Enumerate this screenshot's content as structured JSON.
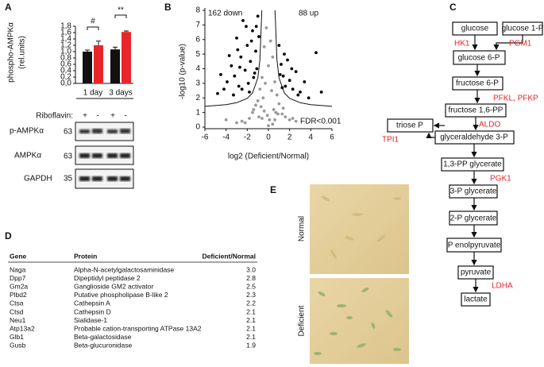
{
  "panel_labels": [
    "A",
    "B",
    "C",
    "D",
    "E"
  ],
  "chart_data": [
    {
      "type": "bar",
      "ylabel": [
        "phospho-AMPKα",
        "(rel.units)"
      ],
      "groups": [
        "1 day",
        "3 days"
      ],
      "values": [
        1.0,
        1.2,
        1.07,
        1.62
      ],
      "errors": [
        0.05,
        0.13,
        0.07,
        0.03
      ],
      "colors": [
        "#111111",
        "#e8262a",
        "#111111",
        "#e8262a"
      ],
      "ylim": [
        0,
        1.8
      ],
      "yticks": [
        {
          "value": 0,
          "label": "0,0"
        },
        {
          "value": 0.2,
          "label": "0,2"
        },
        {
          "value": 0.4,
          "label": "0,4"
        },
        {
          "value": 0.6,
          "label": "0,6"
        },
        {
          "value": 0.8,
          "label": "0,8"
        },
        {
          "value": 1.0,
          "label": "1,0"
        },
        {
          "value": 1.2,
          "label": "1,2"
        },
        {
          "value": 1.4,
          "label": "1,4"
        },
        {
          "value": 1.6,
          "label": "1,6"
        },
        {
          "value": 1.8,
          "label": "1,8"
        }
      ],
      "annotations": [
        "#",
        "**"
      ],
      "treatment_label": "Riboflavin:",
      "treatment": [
        "+",
        "-",
        "+",
        "-"
      ]
    },
    {
      "type": "scatter",
      "xlabel": "log2 (Deficient/Normal)",
      "ylabel": "-log10 (p-value)",
      "annotations": [
        "162 down",
        "88 up",
        "FDR<0.001"
      ],
      "xlim": [
        -6,
        6
      ],
      "xticks": [
        -6,
        -4,
        -2,
        0,
        2,
        4,
        6
      ],
      "ylim": [
        0,
        8
      ],
      "yticks": [
        0,
        1,
        2,
        3,
        4,
        5,
        6,
        7,
        8
      ],
      "series": [
        {
          "color": "#999999",
          "x": [
            -1.8,
            -1.5,
            -1.2,
            -1.0,
            -0.8,
            -0.6,
            -0.4,
            -0.2,
            0,
            0.2,
            0.4,
            0.6,
            0.8,
            1.0,
            1.3,
            1.6,
            2.0,
            -2.5,
            -3.0,
            2.6,
            -0.5,
            -0.3,
            0.3,
            0.5,
            -0.7,
            0.7,
            -0.1,
            0.1,
            -0.9,
            0.9,
            -1.4,
            1.4,
            -2.2,
            2.3,
            -0.4,
            0.4,
            0,
            -0.6,
            0.6,
            -4.0
          ],
          "values": [
            0.6,
            1.0,
            1.5,
            1.8,
            2.6,
            3.4,
            5.5,
            6.8,
            4.2,
            5.9,
            4.8,
            3.1,
            2.2,
            1.6,
            0.9,
            0.7,
            0.5,
            0.4,
            0.3,
            0.4,
            2.0,
            3.0,
            2.5,
            1.2,
            1.4,
            1.0,
            0.8,
            0.5,
            0.7,
            0.9,
            1.2,
            1.3,
            0.3,
            0.6,
            1.1,
            0.2,
            0.1,
            0.6,
            0.5,
            0.5
          ]
        },
        {
          "color": "#000000",
          "x": [
            -4.8,
            -4.2,
            -3.9,
            -3.5,
            -3.2,
            -3.0,
            -2.8,
            -2.6,
            -2.4,
            -2.2,
            -2.0,
            -1.9,
            -1.7,
            -1.5,
            -1.3,
            -1.2,
            -1.1,
            -1.0,
            -0.9,
            -3.7,
            -2.9,
            -2.5,
            -1.8,
            -1.4,
            -2.1,
            -3.3,
            -4.5,
            -1.6,
            -2.7,
            -1.15,
            1.0,
            1.2,
            1.4,
            1.6,
            1.8,
            2.0,
            2.3,
            2.6,
            3.0,
            3.4,
            4.5,
            1.3,
            2.2,
            2.8,
            1.1,
            1.5,
            5.0,
            3.8
          ],
          "values": [
            2.3,
            2.6,
            3.1,
            4.2,
            3.5,
            6.1,
            2.8,
            4.8,
            7.3,
            3.9,
            5.6,
            3.0,
            4.5,
            6.6,
            3.7,
            5.2,
            4.0,
            7.6,
            6.2,
            4.9,
            5.3,
            2.6,
            2.4,
            3.4,
            6.9,
            2.2,
            3.6,
            5.9,
            4.1,
            6.9,
            5.6,
            4.3,
            3.5,
            2.8,
            4.6,
            3.2,
            2.6,
            3.8,
            2.4,
            3.1,
            5.1,
            2.7,
            4.0,
            2.2,
            3.6,
            5.0,
            2.4,
            2.0
          ]
        }
      ]
    }
  ],
  "blots": [
    {
      "label": "p-AMPKα",
      "mw": "63"
    },
    {
      "label": "AMPKα",
      "mw": "63"
    },
    {
      "label": "GAPDH",
      "mw": "35"
    }
  ],
  "diagram": {
    "nodes": [
      "glucose",
      "glucose 1-P",
      "glucose 6-P",
      "fructose 6-P",
      "fructose 1,6-PP",
      "triose P",
      "glyceraldehyde 3-P",
      "1,3-PP glycerate",
      "3-P glycerate",
      "2-P glycerate",
      "P enolpyruvate",
      "pyruvate",
      "lactate"
    ],
    "enzymes": [
      "HK1",
      "PGM1",
      "PFKL, PFKP",
      "ALDO",
      "TPI1",
      "PGK1",
      "LDHA"
    ]
  },
  "table": {
    "header": [
      "Gene",
      "Protein",
      "Deficient/Normal"
    ],
    "rows": [
      [
        "Naga",
        "Alpha-N-acetylgalactosaminidase",
        "3.0"
      ],
      [
        "Dpp7",
        "Dipeptidyl peptidase 2",
        "2.8"
      ],
      [
        "Gm2a",
        "Ganglioside GM2 activator",
        "2.5"
      ],
      [
        "Plbd2",
        "Putative phospholipase B-like 2",
        "2.3"
      ],
      [
        "Ctsa",
        "Cathepsin A",
        "2.2"
      ],
      [
        "Ctsd",
        "Cathepsin D",
        "2.1"
      ],
      [
        "Neu1",
        "Sialidase-1",
        "2.1"
      ],
      [
        "Atp13a2",
        "Probable cation-transporting ATPase 13A2",
        "2.1"
      ],
      [
        "Glb1",
        "Beta-galactosidase",
        "2.1"
      ],
      [
        "Gusb",
        "Beta-glucuronidase",
        "1.9"
      ]
    ]
  },
  "images": [
    "Normal",
    "Deficient"
  ]
}
